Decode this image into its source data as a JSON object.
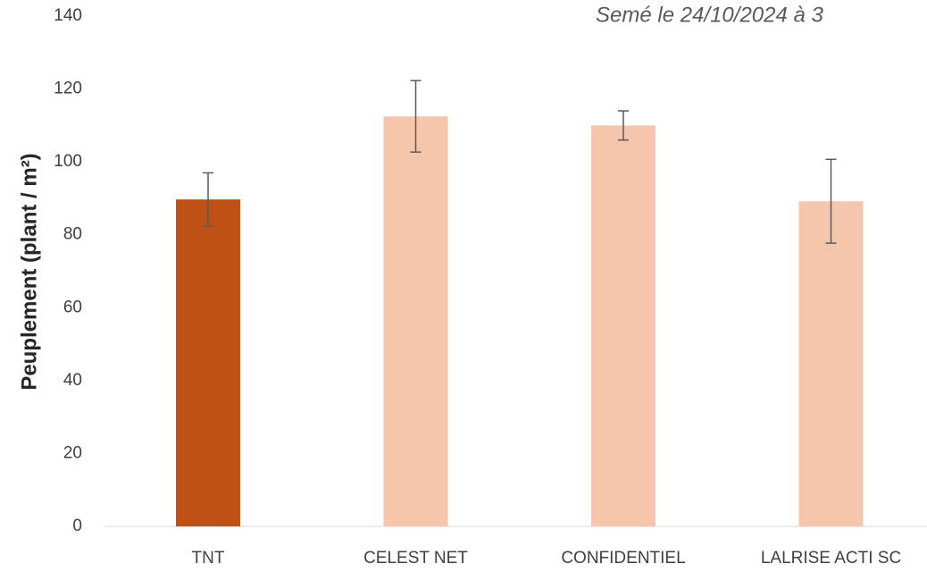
{
  "chart_data": {
    "type": "bar",
    "title": "Semé le 24/10/2024 à 3",
    "y_label": "Peuplement (plant / m²)",
    "categories": [
      "TNT",
      "CELEST NET",
      "CONFIDENTIEL",
      "LALRISE ACTI SC"
    ],
    "values": [
      89.7,
      112.5,
      110,
      89.2
    ],
    "errors": [
      7.3,
      9.8,
      4,
      11.5
    ],
    "colors": [
      "#c05116",
      "#f6c6ac",
      "#f6c6ac",
      "#f6c6ac"
    ],
    "error_color": "#595959",
    "ylim": [
      0,
      140
    ],
    "yticks": [
      0,
      20,
      40,
      60,
      80,
      100,
      120,
      140
    ],
    "grid": false
  }
}
